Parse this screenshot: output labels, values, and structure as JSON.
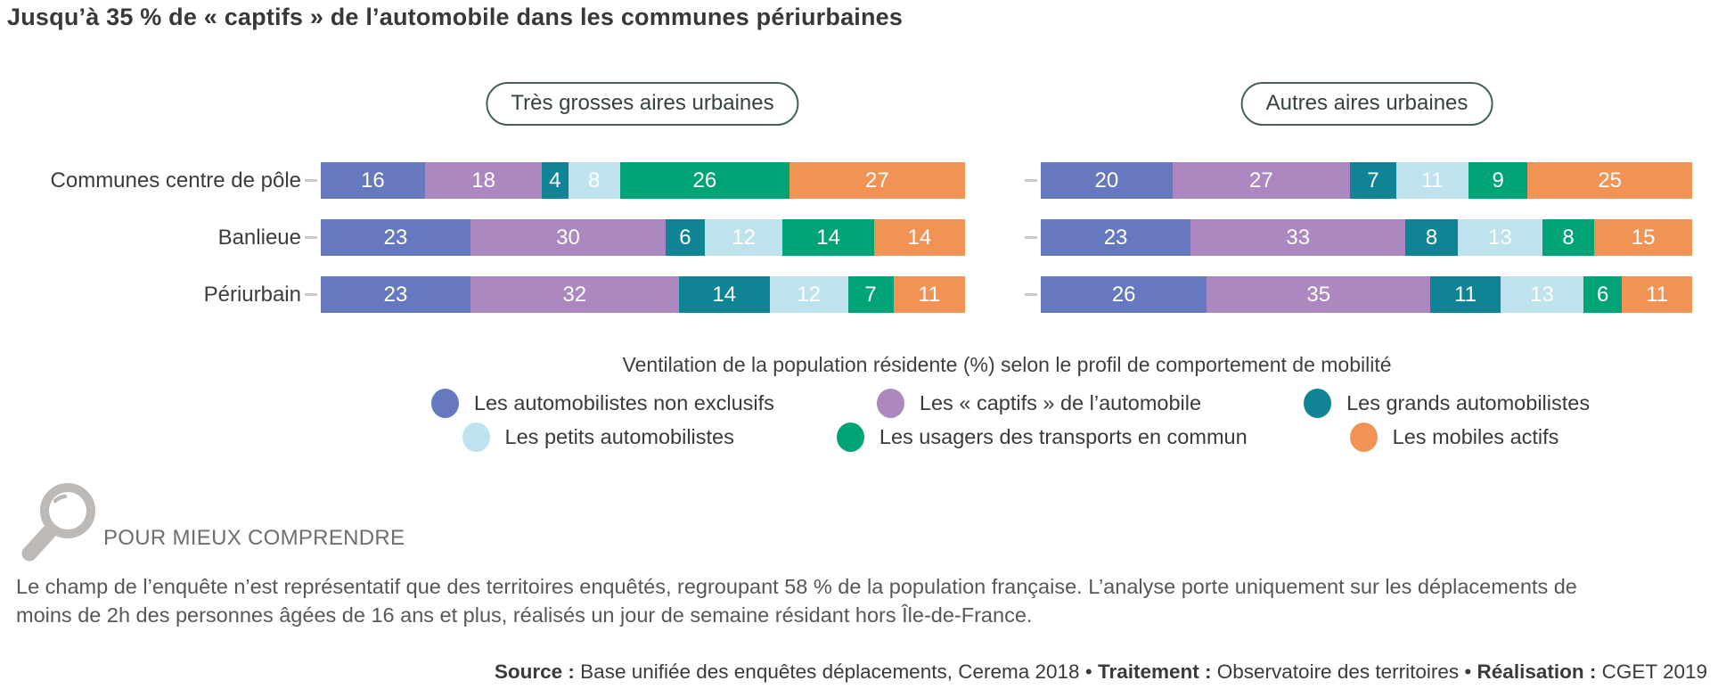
{
  "title": "Jusqu’à 35 % de « captifs » de l’automobile dans les communes périurbaines",
  "chart_data": {
    "type": "bar",
    "variant": "horizontal-stacked",
    "unit": "%",
    "note": "Ventilation de la population résidente (%) selon le profil de comportement de mobilité",
    "categories": [
      "Communes centre de pôle",
      "Banlieue",
      "Périurbain"
    ],
    "series_names": [
      "Les automobilistes non exclusifs",
      "Les « captifs » de l’automobile",
      "Les grands automobilistes",
      "Les petits automobilistes",
      "Les usagers des transports en commun",
      "Les mobiles actifs"
    ],
    "series_colors": [
      "#6679BE",
      "#AC87C0",
      "#0E8494",
      "#BEE3EE",
      "#00A375",
      "#F29356"
    ],
    "legend_position": "bottom",
    "groups": [
      {
        "label": "Très grosses aires urbaines",
        "rows": [
          [
            16,
            18,
            4,
            8,
            26,
            27
          ],
          [
            23,
            30,
            6,
            12,
            14,
            14
          ],
          [
            23,
            32,
            14,
            12,
            7,
            11
          ]
        ]
      },
      {
        "label": "Autres aires urbaines",
        "rows": [
          [
            20,
            27,
            7,
            11,
            9,
            25
          ],
          [
            23,
            33,
            8,
            13,
            8,
            15
          ],
          [
            26,
            35,
            11,
            13,
            6,
            11
          ]
        ]
      }
    ]
  },
  "explain": {
    "heading": "POUR MIEUX COMPRENDRE",
    "body": "Le champ de l’enquête n’est représentatif que des territoires enquêtés, regroupant 58 % de la population française. L’analyse porte uniquement sur les déplacements de moins de 2h des personnes âgées de 16 ans et plus, réalisés un jour de semaine résidant hors Île-de-France."
  },
  "footer": {
    "source_label": "Source :",
    "source_text": "Base unifiée des enquêtes déplacements, Cerema 2018",
    "sep1": "•",
    "traitement_label": "Traitement :",
    "traitement_text": "Observatoire des territoires",
    "sep2": "•",
    "realisation_label": "Réalisation :",
    "realisation_text": "CGET 2019"
  }
}
